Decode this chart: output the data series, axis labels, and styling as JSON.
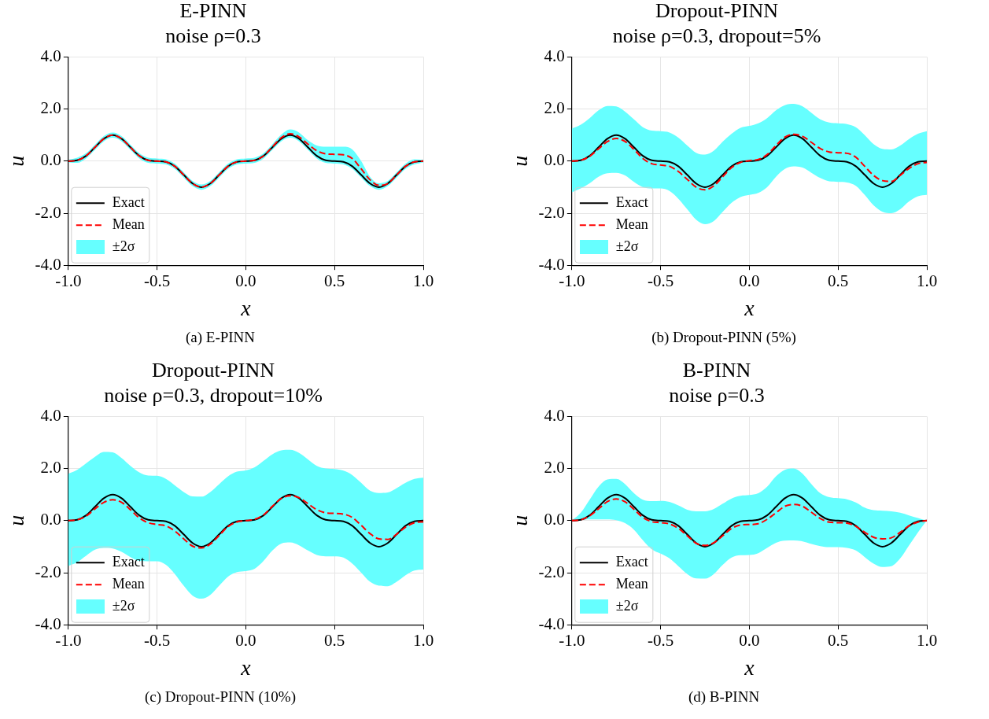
{
  "chart_data": [
    {
      "type": "line",
      "title": "E-PINN",
      "subtitle": "noise ρ=0.3",
      "xlabel": "x",
      "ylabel": "u",
      "annotations": [
        "±2σ",
        "(a) E-PINN"
      ],
      "grid": true,
      "legend": "bottom left",
      "xlim": [
        -1,
        1
      ],
      "ylim": [
        -4,
        4
      ],
      "xticks": [
        {
          "value": -1,
          "label": "-1.0"
        },
        {
          "value": -0.5,
          "label": "-0.5"
        },
        {
          "value": 0,
          "label": "0.0"
        },
        {
          "value": 0.5,
          "label": "0.5"
        },
        {
          "value": 1,
          "label": "1.0"
        }
      ],
      "yticks": [
        {
          "value": -4,
          "label": "-4.0"
        },
        {
          "value": -2,
          "label": "-2.0"
        },
        {
          "value": 0,
          "label": "0.0"
        },
        {
          "value": 2,
          "label": "2.0"
        },
        {
          "value": 4,
          "label": "4.0"
        }
      ],
      "x": [
        -1,
        -0.95,
        -0.9,
        -0.85,
        -0.8,
        -0.75,
        -0.7,
        -0.65,
        -0.6,
        -0.55,
        -0.5,
        -0.45,
        -0.4,
        -0.35,
        -0.3,
        -0.25,
        -0.2,
        -0.15,
        -0.1,
        -0.05,
        0,
        0.05,
        0.1,
        0.15,
        0.2,
        0.25,
        0.3,
        0.35,
        0.4,
        0.45,
        0.5,
        0.55,
        0.6,
        0.65,
        0.7,
        0.75,
        0.8,
        0.85,
        0.9,
        0.95,
        1
      ],
      "series": [
        {
          "name": "Exact",
          "type": "line",
          "color": "#000000",
          "line_style": "solid",
          "values": [
            0,
            0.03,
            0.2,
            0.53,
            0.86,
            1,
            0.86,
            0.53,
            0.2,
            0.03,
            0,
            -0.03,
            -0.2,
            -0.53,
            -0.86,
            -1,
            -0.86,
            -0.53,
            -0.2,
            -0.03,
            0,
            0.03,
            0.2,
            0.53,
            0.86,
            1,
            0.86,
            0.53,
            0.2,
            0.03,
            0,
            -0.03,
            -0.2,
            -0.53,
            -0.86,
            -1,
            -0.86,
            -0.53,
            -0.2,
            -0.03,
            0
          ]
        },
        {
          "name": "Mean",
          "type": "line",
          "color": "#ff0000",
          "line_style": "dashed",
          "values": [
            0,
            0.03,
            0.2,
            0.53,
            0.86,
            1,
            0.86,
            0.53,
            0.2,
            0.03,
            0,
            -0.03,
            -0.2,
            -0.53,
            -0.86,
            -1,
            -0.86,
            -0.53,
            -0.2,
            -0.03,
            0,
            0.03,
            0.2,
            0.55,
            0.9,
            1.05,
            0.93,
            0.65,
            0.4,
            0.28,
            0.26,
            0.24,
            0.1,
            -0.3,
            -0.72,
            -0.93,
            -0.86,
            -0.53,
            -0.2,
            -0.03,
            0
          ],
          "upper": [
            0.05,
            0.13,
            0.3,
            0.63,
            0.96,
            1.1,
            0.96,
            0.63,
            0.3,
            0.13,
            0.1,
            0.07,
            -0.1,
            -0.43,
            -0.76,
            -0.9,
            -0.76,
            -0.43,
            -0.1,
            0.07,
            0.1,
            0.13,
            0.3,
            0.65,
            1.02,
            1.22,
            1.1,
            0.8,
            0.6,
            0.55,
            0.55,
            0.55,
            0.45,
            0,
            -0.6,
            -0.85,
            -0.76,
            -0.43,
            -0.1,
            0.07,
            0.05
          ],
          "lower": [
            -0.05,
            -0.07,
            0.1,
            0.43,
            0.76,
            0.9,
            0.76,
            0.43,
            0.1,
            -0.07,
            -0.1,
            -0.13,
            -0.3,
            -0.63,
            -0.96,
            -1.1,
            -0.96,
            -0.63,
            -0.3,
            -0.13,
            -0.1,
            -0.07,
            0.1,
            0.43,
            0.76,
            0.9,
            0.76,
            0.43,
            0.1,
            -0.07,
            -0.1,
            -0.13,
            -0.3,
            -0.63,
            -0.96,
            -1.1,
            -0.96,
            -0.63,
            -0.3,
            -0.13,
            -0.05
          ]
        }
      ]
    },
    {
      "type": "line",
      "title": "Dropout-PINN",
      "subtitle": "noise ρ=0.3, dropout=5%",
      "xlabel": "x",
      "ylabel": "u",
      "annotations": [
        "±2σ",
        "(b) Dropout-PINN (5%)"
      ],
      "grid": true,
      "legend": "bottom left",
      "xlim": [
        -1,
        1
      ],
      "ylim": [
        -4,
        4
      ],
      "xticks": [
        {
          "value": -1,
          "label": "-1.0"
        },
        {
          "value": -0.5,
          "label": "-0.5"
        },
        {
          "value": 0,
          "label": "0.0"
        },
        {
          "value": 0.5,
          "label": "0.5"
        },
        {
          "value": 1,
          "label": "1.0"
        }
      ],
      "yticks": [
        {
          "value": -4,
          "label": "-4.0"
        },
        {
          "value": -2,
          "label": "-2.0"
        },
        {
          "value": 0,
          "label": "0.0"
        },
        {
          "value": 2,
          "label": "2.0"
        },
        {
          "value": 4,
          "label": "4.0"
        }
      ],
      "x": [
        -1,
        -0.95,
        -0.9,
        -0.85,
        -0.8,
        -0.75,
        -0.7,
        -0.65,
        -0.6,
        -0.55,
        -0.5,
        -0.45,
        -0.4,
        -0.35,
        -0.3,
        -0.25,
        -0.2,
        -0.15,
        -0.1,
        -0.05,
        0,
        0.05,
        0.1,
        0.15,
        0.2,
        0.25,
        0.3,
        0.35,
        0.4,
        0.45,
        0.5,
        0.55,
        0.6,
        0.65,
        0.7,
        0.75,
        0.8,
        0.85,
        0.9,
        0.95,
        1
      ],
      "series": [
        {
          "name": "Exact",
          "type": "line",
          "color": "#000000",
          "line_style": "solid",
          "values": [
            0,
            0.03,
            0.2,
            0.53,
            0.86,
            1,
            0.86,
            0.53,
            0.2,
            0.03,
            0,
            -0.03,
            -0.2,
            -0.53,
            -0.86,
            -1,
            -0.86,
            -0.53,
            -0.2,
            -0.03,
            0,
            0.03,
            0.2,
            0.53,
            0.86,
            1,
            0.86,
            0.53,
            0.2,
            0.03,
            0,
            -0.03,
            -0.2,
            -0.53,
            -0.86,
            -1,
            -0.86,
            -0.53,
            -0.2,
            -0.03,
            0
          ]
        },
        {
          "name": "Mean",
          "type": "line",
          "color": "#ff0000",
          "line_style": "dashed",
          "values": [
            0,
            0.03,
            0.18,
            0.47,
            0.75,
            0.87,
            0.75,
            0.45,
            0.1,
            -0.1,
            -0.15,
            -0.2,
            -0.4,
            -0.7,
            -1,
            -1.1,
            -0.95,
            -0.6,
            -0.25,
            -0.05,
            0.02,
            0.06,
            0.25,
            0.6,
            0.92,
            1.03,
            0.95,
            0.72,
            0.48,
            0.35,
            0.32,
            0.3,
            0.15,
            -0.2,
            -0.55,
            -0.75,
            -0.78,
            -0.55,
            -0.28,
            -0.1,
            -0.05
          ],
          "upper": [
            1.25,
            1.4,
            1.65,
            1.95,
            2.12,
            2.1,
            1.9,
            1.6,
            1.3,
            1.17,
            1.15,
            1.1,
            0.9,
            0.6,
            0.32,
            0.25,
            0.4,
            0.75,
            1.05,
            1.28,
            1.35,
            1.45,
            1.65,
            1.95,
            2.15,
            2.2,
            2.1,
            1.85,
            1.6,
            1.48,
            1.45,
            1.42,
            1.3,
            1,
            0.65,
            0.47,
            0.45,
            0.6,
            0.85,
            1.05,
            1.15
          ],
          "lower": [
            -1.2,
            -1.05,
            -0.85,
            -0.6,
            -0.47,
            -0.45,
            -0.55,
            -0.8,
            -1,
            -1.05,
            -1.05,
            -1.15,
            -1.45,
            -1.85,
            -2.25,
            -2.42,
            -2.3,
            -1.95,
            -1.6,
            -1.38,
            -1.3,
            -1.22,
            -1,
            -0.6,
            -0.3,
            -0.2,
            -0.25,
            -0.45,
            -0.65,
            -0.78,
            -0.8,
            -0.82,
            -0.95,
            -1.3,
            -1.7,
            -1.95,
            -2,
            -1.85,
            -1.55,
            -1.35,
            -1.3
          ]
        }
      ]
    },
    {
      "type": "line",
      "title": "Dropout-PINN",
      "subtitle": "noise ρ=0.3, dropout=10%",
      "xlabel": "x",
      "ylabel": "u",
      "annotations": [
        "±2σ",
        "(c) Dropout-PINN (10%)"
      ],
      "grid": true,
      "legend": "bottom left",
      "xlim": [
        -1,
        1
      ],
      "ylim": [
        -4,
        4
      ],
      "xticks": [
        {
          "value": -1,
          "label": "-1.0"
        },
        {
          "value": -0.5,
          "label": "-0.5"
        },
        {
          "value": 0,
          "label": "0.0"
        },
        {
          "value": 0.5,
          "label": "0.5"
        },
        {
          "value": 1,
          "label": "1.0"
        }
      ],
      "yticks": [
        {
          "value": -4,
          "label": "-4.0"
        },
        {
          "value": -2,
          "label": "-2.0"
        },
        {
          "value": 0,
          "label": "0.0"
        },
        {
          "value": 2,
          "label": "2.0"
        },
        {
          "value": 4,
          "label": "4.0"
        }
      ],
      "x": [
        -1,
        -0.95,
        -0.9,
        -0.85,
        -0.8,
        -0.75,
        -0.7,
        -0.65,
        -0.6,
        -0.55,
        -0.5,
        -0.45,
        -0.4,
        -0.35,
        -0.3,
        -0.25,
        -0.2,
        -0.15,
        -0.1,
        -0.05,
        0,
        0.05,
        0.1,
        0.15,
        0.2,
        0.25,
        0.3,
        0.35,
        0.4,
        0.45,
        0.5,
        0.55,
        0.6,
        0.65,
        0.7,
        0.75,
        0.8,
        0.85,
        0.9,
        0.95,
        1
      ],
      "series": [
        {
          "name": "Exact",
          "type": "line",
          "color": "#000000",
          "line_style": "solid",
          "values": [
            0,
            0.03,
            0.2,
            0.53,
            0.86,
            1,
            0.86,
            0.53,
            0.2,
            0.03,
            0,
            -0.03,
            -0.2,
            -0.53,
            -0.86,
            -1,
            -0.86,
            -0.53,
            -0.2,
            -0.03,
            0,
            0.03,
            0.2,
            0.53,
            0.86,
            1,
            0.86,
            0.53,
            0.2,
            0.03,
            0,
            -0.03,
            -0.2,
            -0.53,
            -0.86,
            -1,
            -0.86,
            -0.53,
            -0.2,
            -0.03,
            0
          ]
        },
        {
          "name": "Mean",
          "type": "line",
          "color": "#ff0000",
          "line_style": "dashed",
          "values": [
            0,
            0.03,
            0.17,
            0.45,
            0.7,
            0.8,
            0.7,
            0.42,
            0.1,
            -0.08,
            -0.15,
            -0.2,
            -0.4,
            -0.7,
            -0.98,
            -1.05,
            -0.9,
            -0.57,
            -0.23,
            -0.05,
            0,
            0.05,
            0.22,
            0.55,
            0.85,
            0.95,
            0.88,
            0.65,
            0.42,
            0.3,
            0.28,
            0.25,
            0.12,
            -0.18,
            -0.5,
            -0.7,
            -0.72,
            -0.52,
            -0.25,
            -0.08,
            -0.05
          ],
          "upper": [
            1.8,
            1.95,
            2.2,
            2.45,
            2.64,
            2.62,
            2.4,
            2.1,
            1.85,
            1.73,
            1.72,
            1.6,
            1.35,
            1.1,
            0.93,
            0.92,
            1.1,
            1.4,
            1.7,
            1.88,
            1.93,
            2.05,
            2.3,
            2.55,
            2.7,
            2.72,
            2.6,
            2.35,
            2.1,
            2,
            1.98,
            1.92,
            1.75,
            1.45,
            1.15,
            1.06,
            1.08,
            1.25,
            1.45,
            1.6,
            1.65
          ],
          "lower": [
            -1.74,
            -1.6,
            -1.35,
            -1.12,
            -1.05,
            -1.07,
            -1.2,
            -1.4,
            -1.55,
            -1.56,
            -1.56,
            -1.7,
            -2.05,
            -2.5,
            -2.88,
            -3,
            -2.85,
            -2.5,
            -2.15,
            -1.98,
            -1.94,
            -1.85,
            -1.55,
            -1.15,
            -0.88,
            -0.84,
            -0.95,
            -1.15,
            -1.32,
            -1.37,
            -1.37,
            -1.42,
            -1.65,
            -2,
            -2.35,
            -2.5,
            -2.52,
            -2.35,
            -2.1,
            -1.92,
            -1.88
          ]
        }
      ]
    },
    {
      "type": "line",
      "title": "B-PINN",
      "subtitle": "noise ρ=0.3",
      "xlabel": "x",
      "ylabel": "u",
      "annotations": [
        "±2σ",
        "(d) B-PINN"
      ],
      "grid": true,
      "legend": "bottom left",
      "xlim": [
        -1,
        1
      ],
      "ylim": [
        -4,
        4
      ],
      "xticks": [
        {
          "value": -1,
          "label": "-1.0"
        },
        {
          "value": -0.5,
          "label": "-0.5"
        },
        {
          "value": 0,
          "label": "0.0"
        },
        {
          "value": 0.5,
          "label": "0.5"
        },
        {
          "value": 1,
          "label": "1.0"
        }
      ],
      "yticks": [
        {
          "value": -4,
          "label": "-4.0"
        },
        {
          "value": -2,
          "label": "-2.0"
        },
        {
          "value": 0,
          "label": "0.0"
        },
        {
          "value": 2,
          "label": "2.0"
        },
        {
          "value": 4,
          "label": "4.0"
        }
      ],
      "x": [
        -1,
        -0.95,
        -0.9,
        -0.85,
        -0.8,
        -0.75,
        -0.7,
        -0.65,
        -0.6,
        -0.55,
        -0.5,
        -0.45,
        -0.4,
        -0.35,
        -0.3,
        -0.25,
        -0.2,
        -0.15,
        -0.1,
        -0.05,
        0,
        0.05,
        0.1,
        0.15,
        0.2,
        0.25,
        0.3,
        0.35,
        0.4,
        0.45,
        0.5,
        0.55,
        0.6,
        0.65,
        0.7,
        0.75,
        0.8,
        0.85,
        0.9,
        0.95,
        1
      ],
      "series": [
        {
          "name": "Exact",
          "type": "line",
          "color": "#000000",
          "line_style": "solid",
          "values": [
            0,
            0.03,
            0.2,
            0.53,
            0.86,
            1,
            0.86,
            0.53,
            0.2,
            0.03,
            0,
            -0.03,
            -0.2,
            -0.53,
            -0.86,
            -1,
            -0.86,
            -0.53,
            -0.2,
            -0.03,
            0,
            0.03,
            0.2,
            0.53,
            0.86,
            1,
            0.86,
            0.53,
            0.2,
            0.03,
            0,
            -0.03,
            -0.2,
            -0.53,
            -0.86,
            -1,
            -0.86,
            -0.53,
            -0.2,
            -0.03,
            0
          ]
        },
        {
          "name": "Mean",
          "type": "line",
          "color": "#ff0000",
          "line_style": "dashed",
          "values": [
            0,
            0.03,
            0.18,
            0.45,
            0.73,
            0.83,
            0.72,
            0.43,
            0.12,
            -0.04,
            -0.08,
            -0.13,
            -0.3,
            -0.58,
            -0.87,
            -0.95,
            -0.85,
            -0.58,
            -0.3,
            -0.17,
            -0.15,
            -0.12,
            0.05,
            0.3,
            0.55,
            0.62,
            0.55,
            0.32,
            0.08,
            -0.06,
            -0.08,
            -0.1,
            -0.22,
            -0.45,
            -0.64,
            -0.7,
            -0.66,
            -0.45,
            -0.2,
            -0.06,
            0
          ],
          "upper": [
            0,
            0.3,
            0.8,
            1.3,
            1.58,
            1.6,
            1.4,
            1.05,
            0.8,
            0.75,
            0.76,
            0.72,
            0.58,
            0.42,
            0.36,
            0.36,
            0.45,
            0.65,
            0.85,
            0.95,
            0.98,
            1.05,
            1.3,
            1.7,
            1.95,
            2,
            1.8,
            1.4,
            1.05,
            0.9,
            0.86,
            0.82,
            0.7,
            0.5,
            0.4,
            0.38,
            0.36,
            0.3,
            0.2,
            0.1,
            0
          ],
          "lower": [
            0,
            0.02,
            0.05,
            0.05,
            0.05,
            0.02,
            -0.1,
            -0.35,
            -0.75,
            -1.1,
            -1.27,
            -1.45,
            -1.75,
            -2.05,
            -2.22,
            -2.23,
            -2.05,
            -1.7,
            -1.42,
            -1.33,
            -1.32,
            -1.25,
            -1.05,
            -0.85,
            -0.77,
            -0.76,
            -0.8,
            -0.9,
            -0.98,
            -1.02,
            -1.02,
            -1.05,
            -1.15,
            -1.4,
            -1.65,
            -1.78,
            -1.75,
            -1.45,
            -0.95,
            -0.45,
            0
          ]
        }
      ]
    }
  ]
}
